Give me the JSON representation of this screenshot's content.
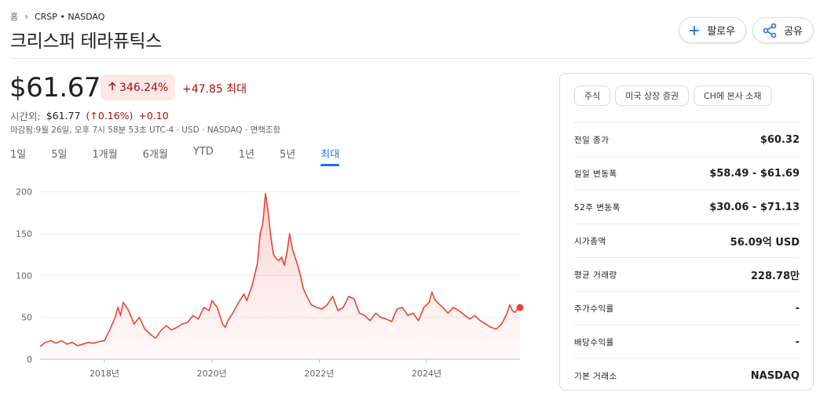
{
  "breadcrumb": {
    "home": "홈",
    "current": "CRSP • NASDAQ"
  },
  "title": "크리스퍼 테라퓨틱스",
  "actions": {
    "follow_label": "팔로우",
    "share_label": "공유"
  },
  "quote": {
    "price": "$61.67",
    "change_pct": "346.24%",
    "change_abs": "+47.85 최대",
    "after_hours_label": "시간외:",
    "after_hours_price": "$61.77",
    "after_hours_pct": "(↑0.16%)",
    "after_hours_abs": "+0.10",
    "meta": "마감됨:9월 26일, 오후 7시 58분 53초 UTC-4 · USD · NASDAQ · 면책조항"
  },
  "range_tabs": [
    "1일",
    "5일",
    "1개월",
    "6개월",
    "YTD",
    "1년",
    "5년",
    "최대"
  ],
  "active_range": "최대",
  "colors": {
    "down_red": "#a50e0e",
    "line_red": "#ea4335",
    "accent_blue": "#1a73e8"
  },
  "chart_data": {
    "type": "area",
    "y_ticks": [
      "0",
      "50",
      "100",
      "150",
      "200"
    ],
    "ylim": [
      0,
      210
    ],
    "xlim": [
      2016.8,
      2025.74
    ],
    "x_ticks": [
      {
        "label": "2018년",
        "year": 2018
      },
      {
        "label": "2020년",
        "year": 2020
      },
      {
        "label": "2022년",
        "year": 2022
      },
      {
        "label": "2024년",
        "year": 2024
      }
    ],
    "series": [
      {
        "points": [
          [
            2016.8,
            15
          ],
          [
            2016.9,
            20
          ],
          [
            2017.0,
            22
          ],
          [
            2017.1,
            19
          ],
          [
            2017.2,
            22
          ],
          [
            2017.3,
            18
          ],
          [
            2017.4,
            20
          ],
          [
            2017.5,
            16
          ],
          [
            2017.6,
            18
          ],
          [
            2017.7,
            20
          ],
          [
            2017.8,
            19
          ],
          [
            2017.9,
            21
          ],
          [
            2018.0,
            22
          ],
          [
            2018.1,
            35
          ],
          [
            2018.2,
            50
          ],
          [
            2018.25,
            62
          ],
          [
            2018.3,
            52
          ],
          [
            2018.35,
            68
          ],
          [
            2018.45,
            58
          ],
          [
            2018.55,
            42
          ],
          [
            2018.65,
            50
          ],
          [
            2018.75,
            36
          ],
          [
            2018.85,
            30
          ],
          [
            2018.95,
            25
          ],
          [
            2019.05,
            34
          ],
          [
            2019.15,
            40
          ],
          [
            2019.25,
            35
          ],
          [
            2019.35,
            38
          ],
          [
            2019.45,
            42
          ],
          [
            2019.55,
            44
          ],
          [
            2019.65,
            52
          ],
          [
            2019.75,
            48
          ],
          [
            2019.85,
            62
          ],
          [
            2019.95,
            58
          ],
          [
            2020.0,
            70
          ],
          [
            2020.1,
            62
          ],
          [
            2020.2,
            42
          ],
          [
            2020.25,
            38
          ],
          [
            2020.3,
            46
          ],
          [
            2020.4,
            56
          ],
          [
            2020.5,
            68
          ],
          [
            2020.6,
            78
          ],
          [
            2020.65,
            70
          ],
          [
            2020.75,
            88
          ],
          [
            2020.85,
            115
          ],
          [
            2020.9,
            150
          ],
          [
            2020.95,
            162
          ],
          [
            2021.0,
            198
          ],
          [
            2021.05,
            175
          ],
          [
            2021.1,
            145
          ],
          [
            2021.15,
            125
          ],
          [
            2021.2,
            120
          ],
          [
            2021.25,
            118
          ],
          [
            2021.3,
            122
          ],
          [
            2021.35,
            112
          ],
          [
            2021.4,
            128
          ],
          [
            2021.45,
            150
          ],
          [
            2021.5,
            132
          ],
          [
            2021.55,
            122
          ],
          [
            2021.6,
            112
          ],
          [
            2021.65,
            100
          ],
          [
            2021.7,
            85
          ],
          [
            2021.75,
            78
          ],
          [
            2021.85,
            65
          ],
          [
            2021.95,
            62
          ],
          [
            2022.05,
            60
          ],
          [
            2022.15,
            65
          ],
          [
            2022.25,
            75
          ],
          [
            2022.35,
            58
          ],
          [
            2022.45,
            62
          ],
          [
            2022.55,
            75
          ],
          [
            2022.65,
            72
          ],
          [
            2022.75,
            55
          ],
          [
            2022.85,
            52
          ],
          [
            2022.95,
            46
          ],
          [
            2023.05,
            55
          ],
          [
            2023.15,
            50
          ],
          [
            2023.25,
            48
          ],
          [
            2023.35,
            45
          ],
          [
            2023.45,
            60
          ],
          [
            2023.55,
            62
          ],
          [
            2023.65,
            52
          ],
          [
            2023.75,
            55
          ],
          [
            2023.85,
            46
          ],
          [
            2023.95,
            62
          ],
          [
            2024.05,
            68
          ],
          [
            2024.1,
            80
          ],
          [
            2024.15,
            72
          ],
          [
            2024.2,
            68
          ],
          [
            2024.3,
            62
          ],
          [
            2024.4,
            55
          ],
          [
            2024.5,
            62
          ],
          [
            2024.6,
            58
          ],
          [
            2024.7,
            53
          ],
          [
            2024.8,
            48
          ],
          [
            2024.9,
            52
          ],
          [
            2025.0,
            46
          ],
          [
            2025.1,
            42
          ],
          [
            2025.2,
            38
          ],
          [
            2025.3,
            36
          ],
          [
            2025.4,
            42
          ],
          [
            2025.5,
            55
          ],
          [
            2025.55,
            65
          ],
          [
            2025.6,
            58
          ],
          [
            2025.65,
            56
          ],
          [
            2025.7,
            60
          ],
          [
            2025.74,
            61.67
          ]
        ]
      }
    ]
  },
  "stats": {
    "chips": [
      "주식",
      "미국 상장 증권",
      "CH에 본사 소재"
    ],
    "rows": [
      {
        "label": "전일 종가",
        "value": "$60.32"
      },
      {
        "label": "일일 변동폭",
        "value": "$58.49 - $61.69"
      },
      {
        "label": "52주 변동폭",
        "value": "$30.06 - $71.13"
      },
      {
        "label": "시가총액",
        "value": "56.09억 USD"
      },
      {
        "label": "평균 거래량",
        "value": "228.78만"
      },
      {
        "label": "주가수익률",
        "value": "-"
      },
      {
        "label": "배당수익률",
        "value": "-"
      },
      {
        "label": "기본 거래소",
        "value": "NASDAQ"
      }
    ]
  }
}
